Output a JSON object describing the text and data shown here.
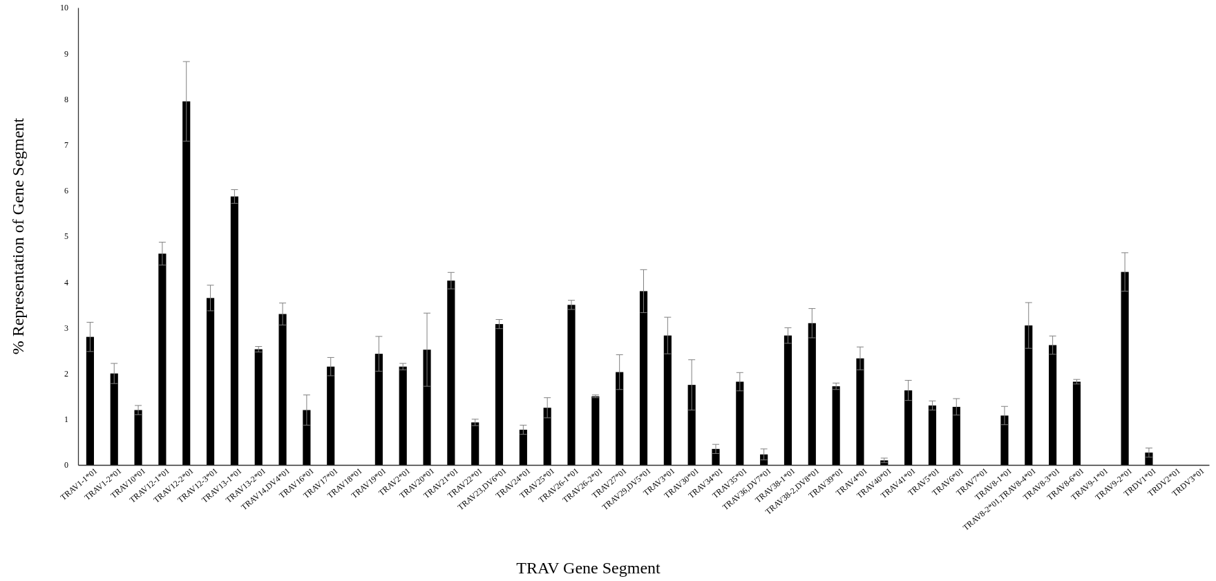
{
  "chart_data": {
    "type": "bar",
    "xlabel": "TRAV Gene Segment",
    "ylabel": "% Representation of Gene Segment",
    "categories": [
      "TRAV1-1*01",
      "TRAV1-2*01",
      "TRAV10*01",
      "TRAV12-1*01",
      "TRAV12-2*01",
      "TRAV12-3*01",
      "TRAV13-1*01",
      "TRAV13-2*01",
      "TRAV14,DV4*01",
      "TRAV16*01",
      "TRAV17*01",
      "TRAV18*01",
      "TRAV19*01",
      "TRAV2*01",
      "TRAV20*01",
      "TRAV21*01",
      "TRAV22*01",
      "TRAV23,DV6*01",
      "TRAV24*01",
      "TRAV25*01",
      "TRAV26-1*01",
      "TRAV26-2*01",
      "TRAV27*01",
      "TRAV29,DV5*01",
      "TRAV3*01",
      "TRAV30*01",
      "TRAV34*01",
      "TRAV35*01",
      "TRAV36,DV7*01",
      "TRAV38-1*01",
      "TRAV38-2,DV8*01",
      "TRAV39*01",
      "TRAV4*01",
      "TRAV40*01",
      "TRAV41*01",
      "TRAV5*01",
      "TRAV6*01",
      "TRAV7*01",
      "TRAV8-1*01",
      "TRAV8-2*01,TRAV8-4*01",
      "TRAV8-3*01",
      "TRAV8-6*01",
      "TRAV9-1*01",
      "TRAV9-2*01",
      "TRDV1*01",
      "TRDV2*01",
      "TRDV3*01"
    ],
    "values": [
      2.8,
      2.0,
      1.2,
      4.62,
      7.95,
      3.65,
      5.87,
      2.53,
      3.3,
      1.2,
      2.15,
      0,
      2.43,
      2.15,
      2.52,
      4.03,
      0.93,
      3.08,
      0.77,
      1.25,
      3.5,
      1.5,
      2.03,
      3.8,
      2.83,
      1.75,
      0.35,
      1.82,
      0.23,
      2.83,
      3.1,
      1.72,
      2.33,
      0.1,
      1.63,
      1.3,
      1.27,
      0,
      1.08,
      3.05,
      2.62,
      1.82,
      0,
      4.22,
      0.27,
      0,
      0
    ],
    "errors": [
      0.32,
      0.22,
      0.1,
      0.25,
      0.87,
      0.28,
      0.15,
      0.06,
      0.24,
      0.33,
      0.2,
      null,
      0.38,
      0.07,
      0.8,
      0.18,
      0.07,
      0.1,
      0.1,
      0.22,
      0.1,
      0.03,
      0.38,
      0.47,
      0.4,
      0.55,
      0.1,
      0.2,
      0.12,
      0.17,
      0.32,
      0.07,
      0.25,
      0.05,
      0.22,
      0.1,
      0.18,
      null,
      0.2,
      0.5,
      0.2,
      0.05,
      null,
      0.42,
      0.1,
      null,
      null
    ],
    "color": "#000000",
    "ylim": [
      0,
      10
    ],
    "yticks": [
      0,
      1,
      2,
      3,
      4,
      5,
      6,
      7,
      8,
      9,
      10
    ],
    "grid": false
  }
}
